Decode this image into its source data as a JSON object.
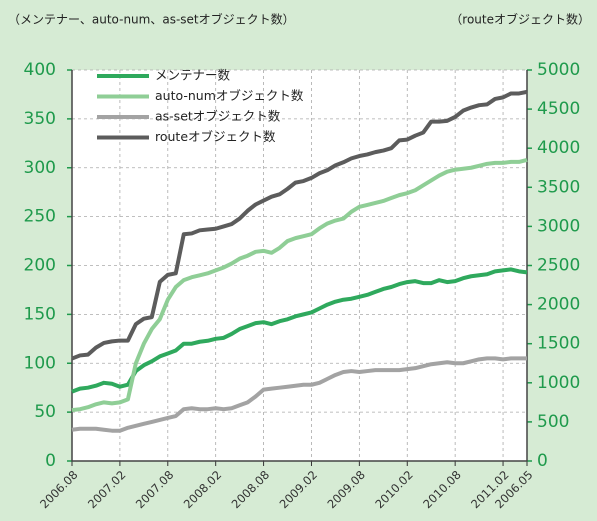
{
  "chart_data": {
    "type": "line",
    "y_label": "（メンテナー、auto-num、as-setオブジェクト数）",
    "y2_label": "（routeオブジェクト数）",
    "categories": [
      "2006.08",
      null,
      null,
      null,
      null,
      null,
      "2007.02",
      null,
      null,
      null,
      null,
      null,
      "2007.08",
      null,
      null,
      null,
      null,
      null,
      "2008.02",
      null,
      null,
      null,
      null,
      null,
      "2008.08",
      null,
      null,
      null,
      null,
      null,
      "2009.02",
      null,
      null,
      null,
      null,
      null,
      "2009.08",
      null,
      null,
      null,
      null,
      null,
      "2010.02",
      null,
      null,
      null,
      null,
      null,
      "2010.08",
      null,
      null,
      null,
      null,
      null,
      "2011.02",
      null,
      null,
      "2006.05"
    ],
    "ylim": [
      0,
      400
    ],
    "yticks": [
      0,
      50,
      100,
      150,
      200,
      250,
      300,
      350,
      400
    ],
    "y2lim": [
      0,
      5000
    ],
    "y2ticks": [
      0,
      500,
      1000,
      1500,
      2000,
      2500,
      3000,
      3500,
      4000,
      4500,
      5000
    ],
    "grid": true,
    "legend": "upper left",
    "series": [
      {
        "name": "メンテナー数",
        "color": "#2fa95d",
        "values": [
          71,
          74,
          75,
          77,
          80,
          79,
          76,
          78,
          92,
          98,
          102,
          107,
          110,
          113,
          120,
          120,
          122,
          123,
          125,
          126,
          130,
          135,
          138,
          141,
          142,
          140,
          143,
          145,
          148,
          150,
          152,
          156,
          160,
          163,
          165,
          166,
          168,
          170,
          173,
          176,
          178,
          181,
          183,
          184,
          182,
          182,
          185,
          183,
          184,
          187,
          189,
          190,
          191,
          194,
          195,
          196,
          194,
          193
        ]
      },
      {
        "name": "auto-numオブジェクト数",
        "color": "#8fce96",
        "values": [
          52,
          53,
          55,
          58,
          60,
          59,
          60,
          63,
          100,
          120,
          135,
          145,
          165,
          178,
          185,
          188,
          190,
          192,
          195,
          198,
          202,
          207,
          210,
          214,
          215,
          213,
          218,
          225,
          228,
          230,
          232,
          238,
          243,
          246,
          248,
          255,
          260,
          262,
          264,
          266,
          269,
          272,
          274,
          277,
          282,
          287,
          292,
          296,
          298,
          299,
          300,
          302,
          304,
          305,
          305,
          306,
          306,
          308
        ]
      },
      {
        "name": "as-setオブジェクト数",
        "color": "#a3a3a3",
        "values": [
          32,
          33,
          33,
          33,
          32,
          31,
          31,
          34,
          36,
          38,
          40,
          42,
          44,
          46,
          53,
          54,
          53,
          53,
          54,
          53,
          54,
          57,
          60,
          66,
          73,
          74,
          75,
          76,
          77,
          78,
          78,
          80,
          84,
          88,
          91,
          92,
          91,
          92,
          93,
          93,
          93,
          93,
          94,
          95,
          97,
          99,
          100,
          101,
          100,
          100,
          102,
          104,
          105,
          105,
          104,
          105,
          105,
          105
        ]
      },
      {
        "name": "routeオブジェクト数",
        "color": "#5c5c5c",
        "axis": "y2",
        "values": [
          1310,
          1350,
          1360,
          1450,
          1510,
          1530,
          1540,
          1540,
          1750,
          1820,
          1840,
          2290,
          2380,
          2400,
          2900,
          2910,
          2950,
          2960,
          2970,
          3000,
          3030,
          3100,
          3200,
          3280,
          3330,
          3380,
          3410,
          3480,
          3560,
          3580,
          3620,
          3680,
          3720,
          3780,
          3820,
          3870,
          3900,
          3920,
          3950,
          3970,
          4000,
          4100,
          4110,
          4160,
          4200,
          4340,
          4340,
          4350,
          4400,
          4480,
          4520,
          4550,
          4560,
          4630,
          4650,
          4700,
          4700,
          4720
        ]
      }
    ]
  }
}
